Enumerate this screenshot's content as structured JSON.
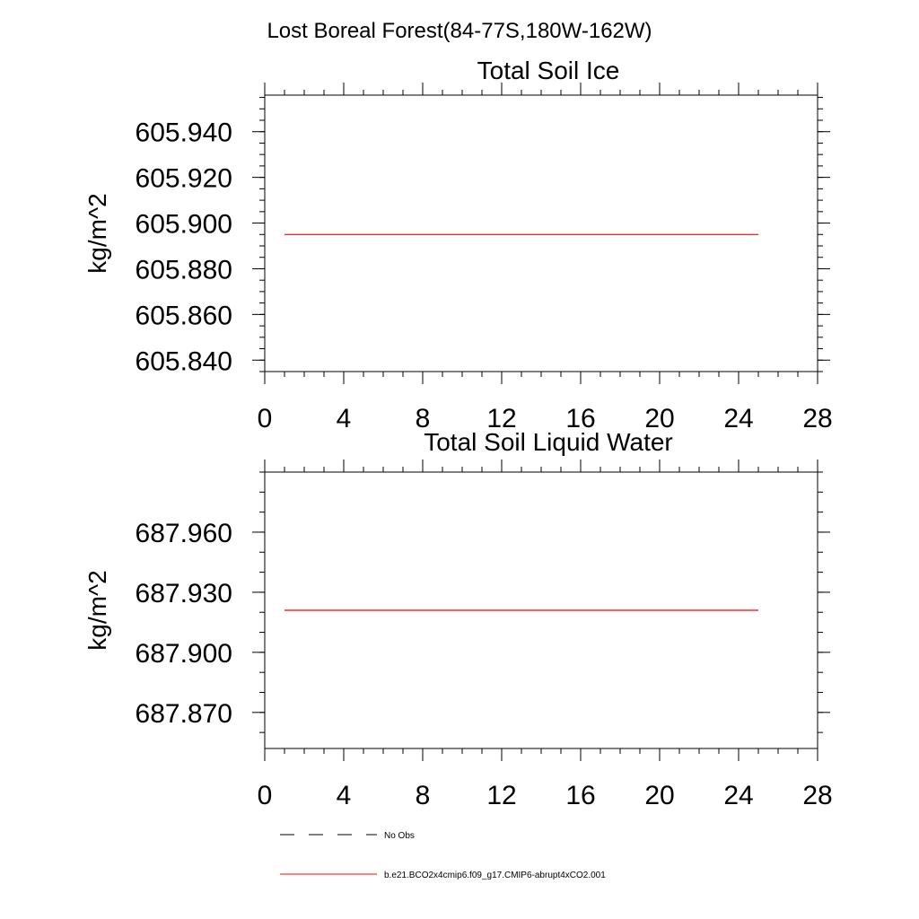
{
  "figure": {
    "suptitle": "Lost Boreal Forest(84-77S,180W-162W)"
  },
  "legend": {
    "entries": [
      {
        "label": "No Obs",
        "color": "#000000",
        "style": "dashed"
      },
      {
        "label": "b.e21.BCO2x4cmip6.f09_g17.CMIP6-abrupt4xCO2.001",
        "color": "#ff0000",
        "style": "solid"
      }
    ]
  },
  "chart_data": [
    {
      "type": "line",
      "title": "Total Soil Ice",
      "xlabel": "",
      "ylabel": "kg/m^2",
      "xlim": [
        0,
        28
      ],
      "ylim": [
        605.835,
        605.956
      ],
      "xticks": [
        0,
        4,
        8,
        12,
        16,
        20,
        24,
        28
      ],
      "xtick_labels": [
        "0",
        "4",
        "8",
        "12",
        "16",
        "20",
        "24",
        "28"
      ],
      "yticks": [
        605.84,
        605.86,
        605.88,
        605.9,
        605.92,
        605.94
      ],
      "ytick_labels": [
        "605.840",
        "605.860",
        "605.880",
        "605.900",
        "605.920",
        "605.940"
      ],
      "y_minor_step": 0.005,
      "x_minor_step": 1,
      "grid": false,
      "series": [
        {
          "name": "b.e21.BCO2x4cmip6.f09_g17.CMIP6-abrupt4xCO2.001",
          "color": "#ff0000",
          "x": [
            1,
            2,
            3,
            4,
            5,
            6,
            7,
            8,
            9,
            10,
            11,
            12,
            13,
            14,
            15,
            16,
            17,
            18,
            19,
            20,
            21,
            22,
            23,
            24,
            25
          ],
          "y": [
            605.895,
            605.895,
            605.895,
            605.895,
            605.895,
            605.895,
            605.895,
            605.895,
            605.895,
            605.895,
            605.895,
            605.895,
            605.895,
            605.895,
            605.895,
            605.895,
            605.895,
            605.895,
            605.895,
            605.895,
            605.895,
            605.895,
            605.895,
            605.895,
            605.895
          ]
        }
      ]
    },
    {
      "type": "line",
      "title": "Total Soil Liquid Water",
      "xlabel": "",
      "ylabel": "kg/m^2",
      "xlim": [
        0,
        28
      ],
      "ylim": [
        687.852,
        687.99
      ],
      "xticks": [
        0,
        4,
        8,
        12,
        16,
        20,
        24,
        28
      ],
      "xtick_labels": [
        "0",
        "4",
        "8",
        "12",
        "16",
        "20",
        "24",
        "28"
      ],
      "yticks": [
        687.87,
        687.9,
        687.93,
        687.96
      ],
      "ytick_labels": [
        "687.870",
        "687.900",
        "687.930",
        "687.960"
      ],
      "y_minor_step": 0.01,
      "x_minor_step": 1,
      "grid": false,
      "series": [
        {
          "name": "b.e21.BCO2x4cmip6.f09_g17.CMIP6-abrupt4xCO2.001",
          "color": "#ff0000",
          "x": [
            1,
            2,
            3,
            4,
            5,
            6,
            7,
            8,
            9,
            10,
            11,
            12,
            13,
            14,
            15,
            16,
            17,
            18,
            19,
            20,
            21,
            22,
            23,
            24,
            25
          ],
          "y": [
            687.921,
            687.921,
            687.921,
            687.921,
            687.921,
            687.921,
            687.921,
            687.921,
            687.921,
            687.921,
            687.921,
            687.921,
            687.921,
            687.921,
            687.921,
            687.921,
            687.921,
            687.921,
            687.921,
            687.921,
            687.921,
            687.921,
            687.921,
            687.921,
            687.921
          ]
        }
      ]
    }
  ]
}
